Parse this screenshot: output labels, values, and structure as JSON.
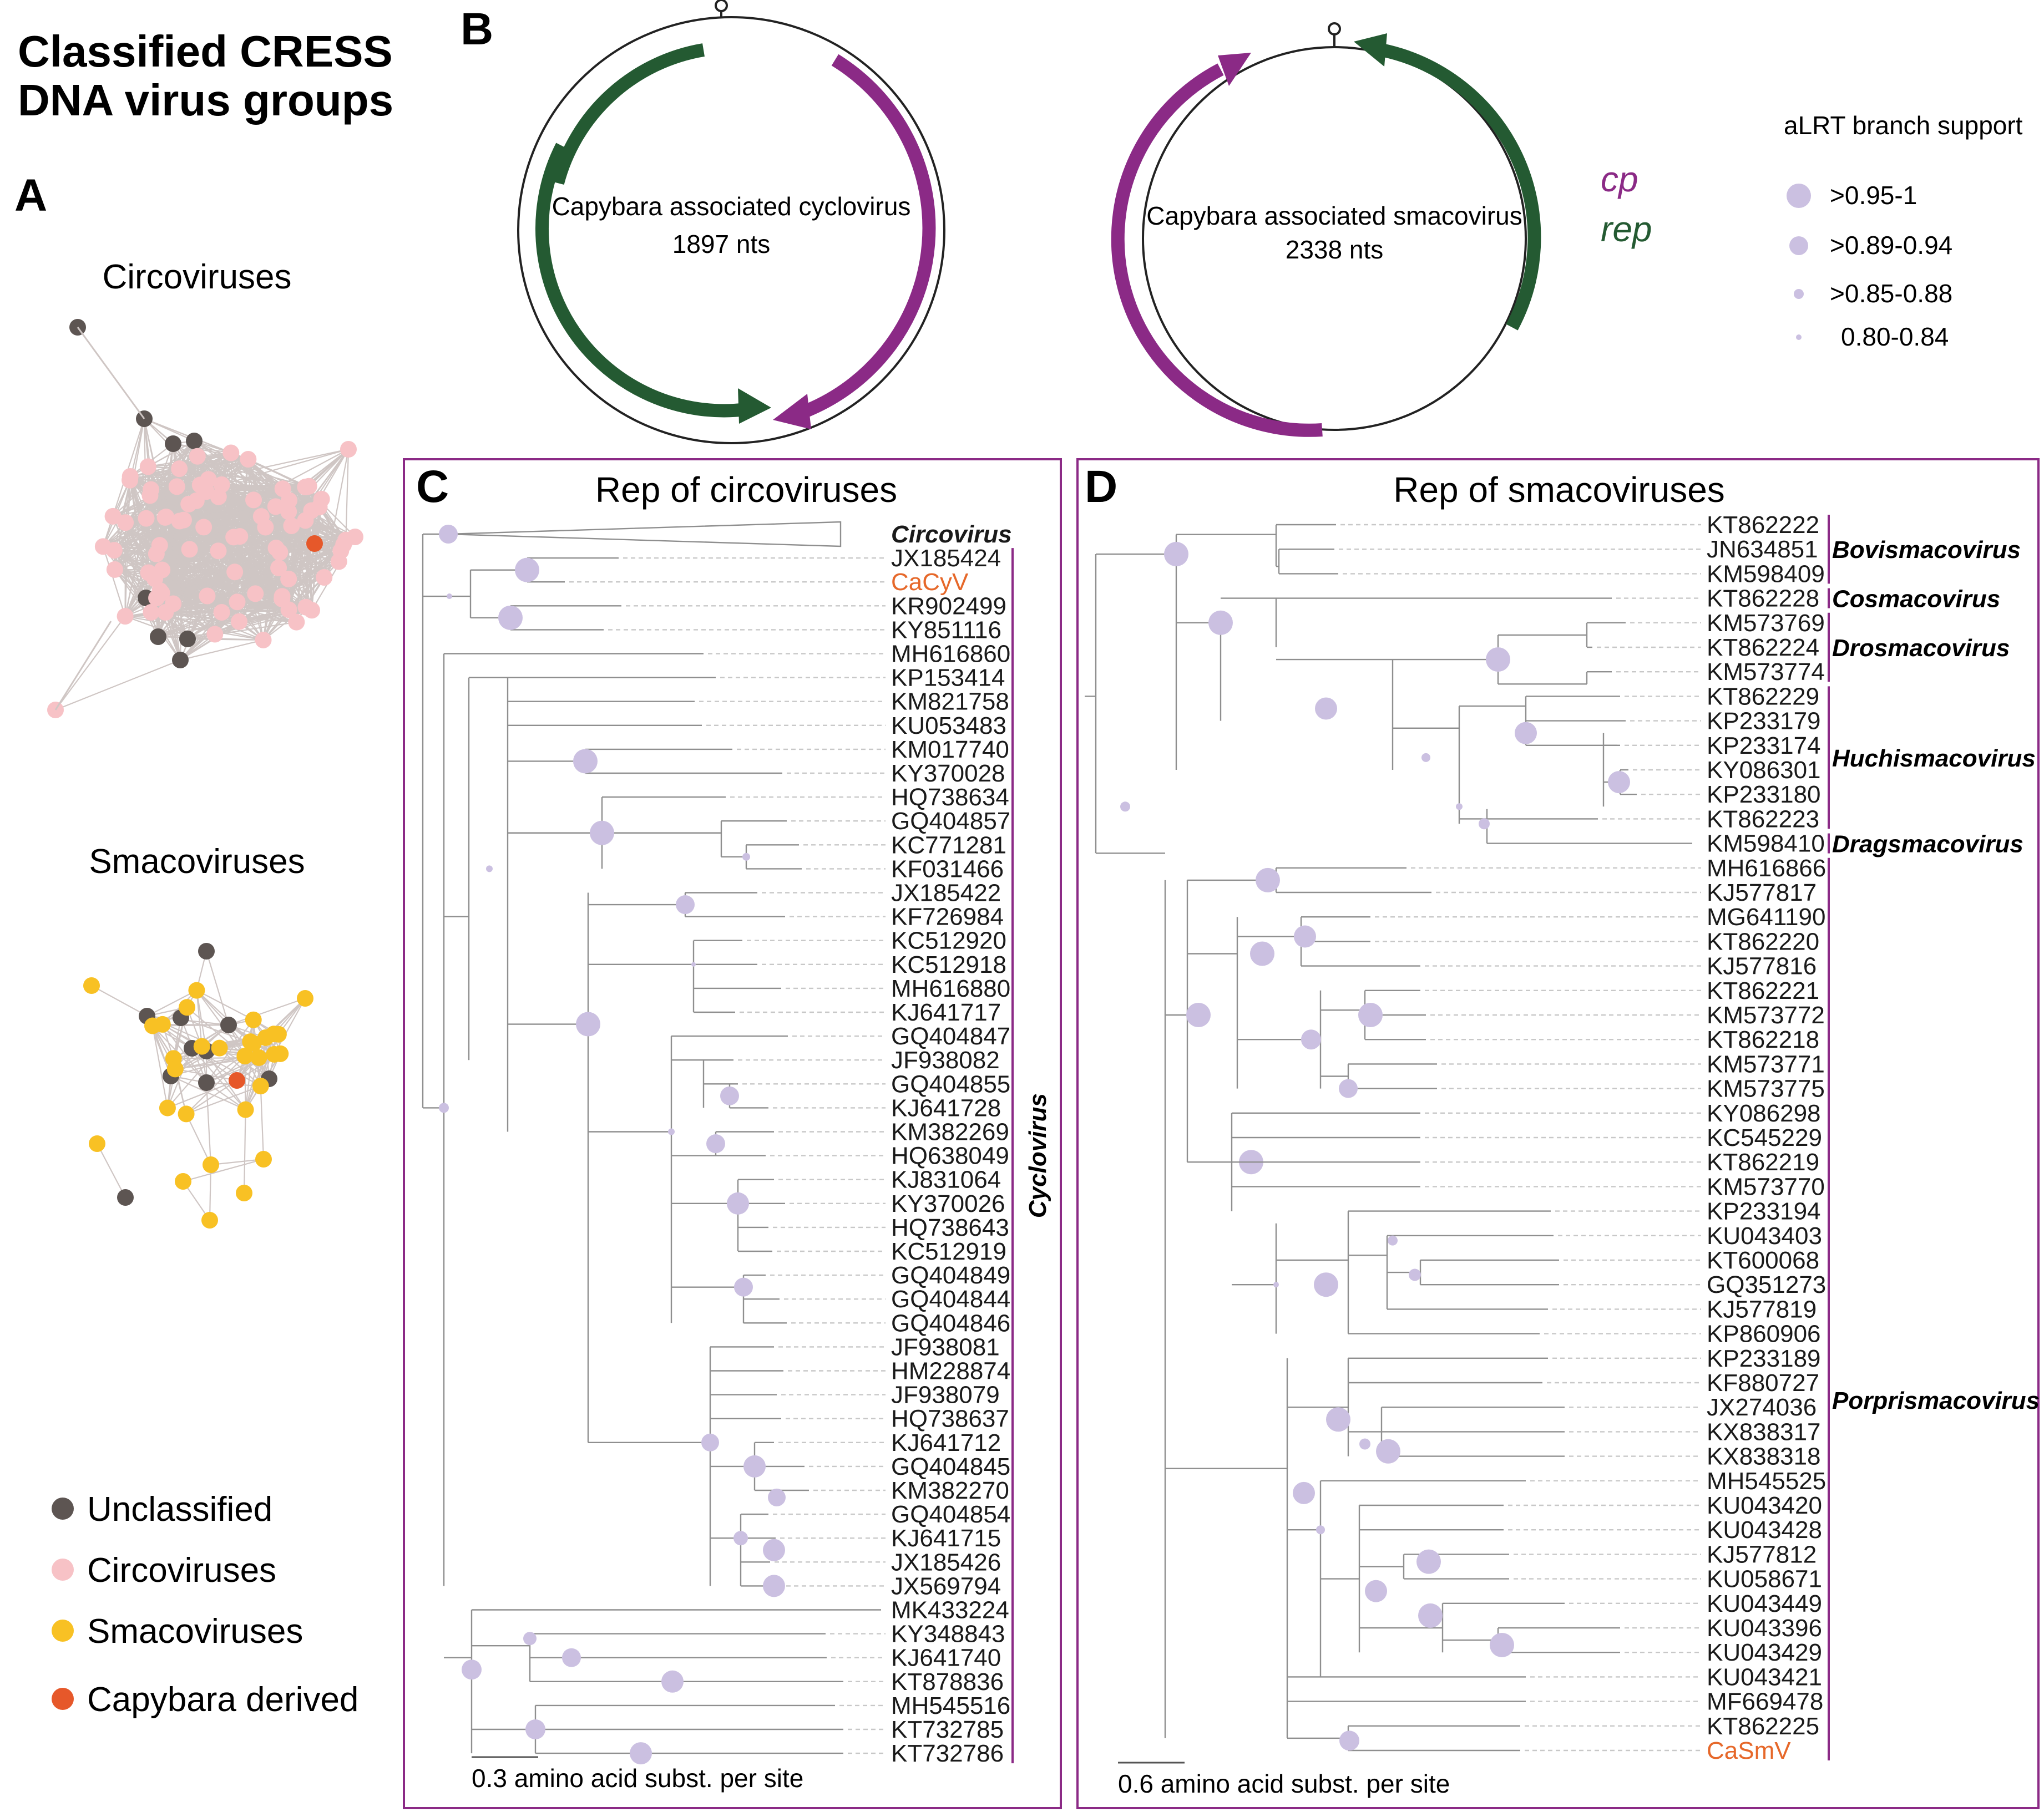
{
  "figure_title_lines": [
    "Classified CRESS",
    "DNA virus groups"
  ],
  "panels": {
    "a": "A",
    "b": "B",
    "c": "C",
    "d": "D"
  },
  "network": {
    "circo_title": "Circoviruses",
    "smaco_title": "Smacoviruses",
    "legend": [
      {
        "label": "Unclassified",
        "color": "#5d5552"
      },
      {
        "label": "Circoviruses",
        "color": "#f7c2c6"
      },
      {
        "label": "Smacoviruses",
        "color": "#f8c124"
      },
      {
        "label": "Capybara derived",
        "color": "#e6582a"
      }
    ]
  },
  "genomes": {
    "cyclo_name": "Capybara associated cyclovirus",
    "cyclo_len": "1897 nts",
    "smaco_name": "Capybara associated smacovirus",
    "smaco_len": "2338 nts",
    "cp_label": "cp",
    "rep_label": "rep",
    "cp_color": "#8b2a86",
    "rep_color": "#245a32"
  },
  "support_legend": {
    "title": "aLRT branch support",
    "items": [
      ">0.95-1",
      ">0.89-0.94",
      ">0.85-0.88",
      "0.80-0.84"
    ],
    "color": "#cbc0e1"
  },
  "tree_c": {
    "title": "Rep of circoviruses",
    "scale": "0.3 amino acid subst. per site",
    "leaves": [
      "Circovirus",
      "JX185424",
      "CaCyV",
      "KR902499",
      "KY851116",
      "MH616860",
      "KP153414",
      "KM821758",
      "KU053483",
      "KM017740",
      "KY370028",
      "HQ738634",
      "GQ404857",
      "KC771281",
      "KF031466",
      "JX185422",
      "KF726984",
      "KC512920",
      "KC512918",
      "MH616880",
      "KJ641717",
      "GQ404847",
      "JF938082",
      "GQ404855",
      "KJ641728",
      "KM382269",
      "HQ638049",
      "KJ831064",
      "KY370026",
      "HQ738643",
      "KC512919",
      "GQ404849",
      "GQ404844",
      "GQ404846",
      "JF938081",
      "HM228874",
      "JF938079",
      "HQ738637",
      "KJ641712",
      "GQ404845",
      "KM382270",
      "GQ404854",
      "KJ641715",
      "JX185426",
      "JX569794",
      "MK433224",
      "KY348843",
      "KJ641740",
      "KT878836",
      "MH545516",
      "KT732785",
      "KT732786"
    ],
    "highlight": "CaCyV",
    "clade": "Cyclovirus"
  },
  "tree_d": {
    "title": "Rep of smacoviruses",
    "scale": "0.6 amino acid subst. per site",
    "leaves": [
      "KT862222",
      "JN634851",
      "KM598409",
      "KT862228",
      "KM573769",
      "KT862224",
      "KM573774",
      "KT862229",
      "KP233179",
      "KP233174",
      "KY086301",
      "KP233180",
      "KT862223",
      "KM598410",
      "MH616866",
      "KJ577817",
      "MG641190",
      "KT862220",
      "KJ577816",
      "KT862221",
      "KM573772",
      "KT862218",
      "KM573771",
      "KM573775",
      "KY086298",
      "KC545229",
      "KT862219",
      "KM573770",
      "KP233194",
      "KU043403",
      "KT600068",
      "GQ351273",
      "KJ577819",
      "KP860906",
      "KP233189",
      "KF880727",
      "JX274036",
      "KX838317",
      "KX838318",
      "MH545525",
      "KU043420",
      "KU043428",
      "KJ577812",
      "KU058671",
      "KU043449",
      "KU043396",
      "KU043429",
      "KU043421",
      "MF669478",
      "KT862225",
      "CaSmV"
    ],
    "highlight": "CaSmV",
    "clades": [
      {
        "label": "Bovismacovirus",
        "first": 0,
        "last": 2
      },
      {
        "label": "Cosmacovirus",
        "first": 3,
        "last": 3
      },
      {
        "label": "Drosmacovirus",
        "first": 4,
        "last": 6
      },
      {
        "label": "Huchismacovirus",
        "first": 7,
        "last": 12
      },
      {
        "label": "Dragsmacovirus",
        "first": 13,
        "last": 13
      },
      {
        "label": "Porprismacovirus",
        "first": 14,
        "last": 50
      }
    ]
  },
  "colors": {
    "frame": "#8b2a86",
    "bubble": "#cbc0e1",
    "highlight": "#e6682a",
    "branch": "#8f8f8f"
  }
}
